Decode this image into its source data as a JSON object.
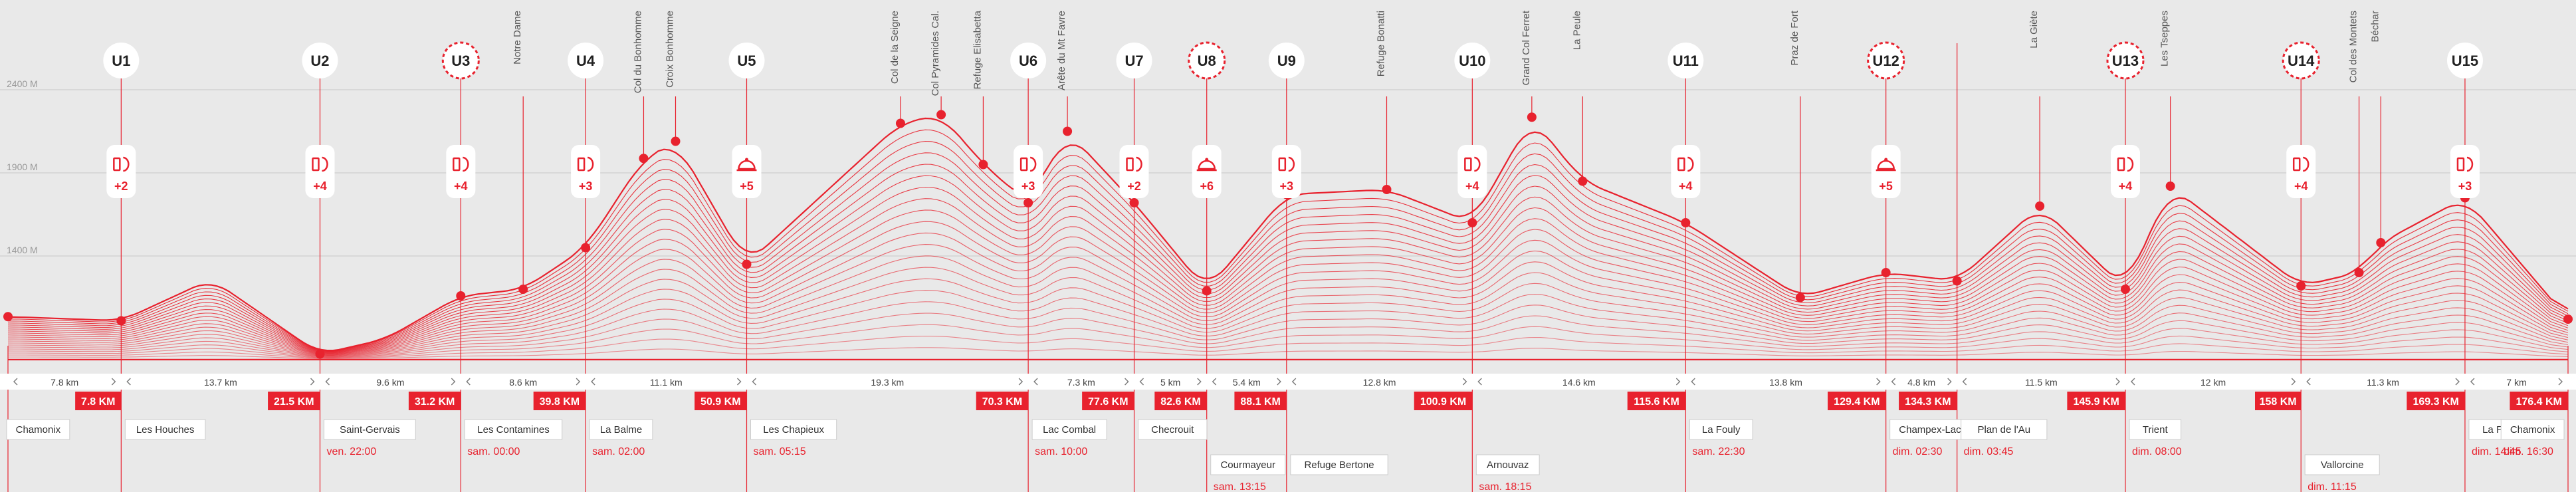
{
  "chart_data": {
    "type": "area",
    "title": "",
    "xlabel": "",
    "ylabel": "",
    "xlim": [
      0,
      176.4
    ],
    "ylim": [
      600,
      2800
    ],
    "y_ticks": [
      {
        "value": 1400,
        "label": "1400 M"
      },
      {
        "value": 1900,
        "label": "1900 M"
      },
      {
        "value": 2400,
        "label": "2400 M"
      }
    ],
    "colors": {
      "accent": "#e8222e",
      "background": "#e9e9e9",
      "grid": "#d2d2d2"
    },
    "profile": [
      {
        "km": 0,
        "alt": 1035
      },
      {
        "km": 7.8,
        "alt": 1010
      },
      {
        "km": 14.0,
        "alt": 1260
      },
      {
        "km": 21.5,
        "alt": 810
      },
      {
        "km": 26.0,
        "alt": 900
      },
      {
        "km": 31.2,
        "alt": 1160
      },
      {
        "km": 35.5,
        "alt": 1200
      },
      {
        "km": 39.8,
        "alt": 1450
      },
      {
        "km": 43.8,
        "alt": 1987
      },
      {
        "km": 46.0,
        "alt": 2090
      },
      {
        "km": 50.9,
        "alt": 1350
      },
      {
        "km": 61.5,
        "alt": 2198
      },
      {
        "km": 64.3,
        "alt": 2250
      },
      {
        "km": 67.2,
        "alt": 1950
      },
      {
        "km": 70.3,
        "alt": 1720
      },
      {
        "km": 73.0,
        "alt": 2150
      },
      {
        "km": 77.6,
        "alt": 1720
      },
      {
        "km": 82.6,
        "alt": 1190
      },
      {
        "km": 88.1,
        "alt": 1770
      },
      {
        "km": 95.0,
        "alt": 1800
      },
      {
        "km": 100.9,
        "alt": 1600
      },
      {
        "km": 105.0,
        "alt": 2235
      },
      {
        "km": 108.5,
        "alt": 1850
      },
      {
        "km": 115.6,
        "alt": 1600
      },
      {
        "km": 123.5,
        "alt": 1150
      },
      {
        "km": 129.4,
        "alt": 1300
      },
      {
        "km": 134.3,
        "alt": 1250
      },
      {
        "km": 140.0,
        "alt": 1700
      },
      {
        "km": 145.9,
        "alt": 1200
      },
      {
        "km": 149.0,
        "alt": 1820
      },
      {
        "km": 158.0,
        "alt": 1220
      },
      {
        "km": 162.0,
        "alt": 1300
      },
      {
        "km": 163.5,
        "alt": 1480
      },
      {
        "km": 169.3,
        "alt": 1750
      },
      {
        "km": 176.4,
        "alt": 1020
      }
    ],
    "stations": [
      {
        "label": "U1",
        "km": 7.8,
        "dashed": false,
        "services": "+2",
        "icon": "drink-food-icon"
      },
      {
        "label": "U2",
        "km": 21.5,
        "dashed": false,
        "services": "+4",
        "icon": "drink-food-icon"
      },
      {
        "label": "U3",
        "km": 31.2,
        "dashed": true,
        "services": "+4",
        "icon": "drink-food-icon"
      },
      {
        "label": "U4",
        "km": 39.8,
        "dashed": false,
        "services": "+3",
        "icon": "drink-food-icon"
      },
      {
        "label": "U5",
        "km": 50.9,
        "dashed": false,
        "services": "+5",
        "icon": "meal-icon"
      },
      {
        "label": "U6",
        "km": 70.3,
        "dashed": false,
        "services": "+3",
        "icon": "drink-food-icon"
      },
      {
        "label": "U7",
        "km": 77.6,
        "dashed": false,
        "services": "+2",
        "icon": "drink-food-icon"
      },
      {
        "label": "U8",
        "km": 82.6,
        "dashed": true,
        "services": "+6",
        "icon": "meal-icon"
      },
      {
        "label": "U9",
        "km": 88.1,
        "dashed": false,
        "services": "+3",
        "icon": "drink-food-icon"
      },
      {
        "label": "U10",
        "km": 100.9,
        "dashed": false,
        "services": "+4",
        "icon": "drink-food-icon"
      },
      {
        "label": "U11",
        "km": 115.6,
        "dashed": false,
        "services": "+4",
        "icon": "drink-food-icon"
      },
      {
        "label": "U12",
        "km": 129.4,
        "dashed": true,
        "services": "+5",
        "icon": "meal-icon"
      },
      {
        "label": "U13",
        "km": 145.9,
        "dashed": true,
        "services": "+4",
        "icon": "drink-food-icon"
      },
      {
        "label": "U14",
        "km": 158,
        "dashed": true,
        "services": "+4",
        "icon": "drink-food-icon"
      },
      {
        "label": "U15",
        "km": 169.3,
        "dashed": false,
        "services": "+3",
        "icon": "drink-food-icon"
      }
    ],
    "summits": [
      {
        "label": "Notre Dame",
        "km": 35.5
      },
      {
        "label": "Col du Bonhomme",
        "km": 43.8
      },
      {
        "label": "Croix Bonhomme",
        "km": 46.0
      },
      {
        "label": "Col de la Seigne",
        "km": 61.5
      },
      {
        "label": "Col Pyramides Cal.",
        "km": 64.3
      },
      {
        "label": "Refuge Elisabetta",
        "km": 67.2
      },
      {
        "label": "Arête du Mt Favre",
        "km": 73.0
      },
      {
        "label": "Refuge Bonatti",
        "km": 95.0
      },
      {
        "label": "Grand Col Ferret",
        "km": 105.0
      },
      {
        "label": "La Peule",
        "km": 108.5
      },
      {
        "label": "Praz de Fort",
        "km": 123.5
      },
      {
        "label": "La Giète",
        "km": 140.0
      },
      {
        "label": "Les Tseppes",
        "km": 149.0
      },
      {
        "label": "Col des Montets",
        "km": 162.0
      },
      {
        "label": "Béchar",
        "km": 163.5
      }
    ],
    "plain_markers_km": [
      134.3
    ],
    "segments": [
      {
        "label": "7.8 km",
        "from": 0,
        "to": 7.8
      },
      {
        "label": "13.7 km",
        "from": 7.8,
        "to": 21.5
      },
      {
        "label": "9.6 km",
        "from": 21.5,
        "to": 31.2
      },
      {
        "label": "8.6 km",
        "from": 31.2,
        "to": 39.8
      },
      {
        "label": "11.1 km",
        "from": 39.8,
        "to": 50.9
      },
      {
        "label": "19.3 km",
        "from": 50.9,
        "to": 70.3
      },
      {
        "label": "7.3 km",
        "from": 70.3,
        "to": 77.6
      },
      {
        "label": "5 km",
        "from": 77.6,
        "to": 82.6
      },
      {
        "label": "5.4 km",
        "from": 82.6,
        "to": 88.1
      },
      {
        "label": "12.8 km",
        "from": 88.1,
        "to": 100.9
      },
      {
        "label": "14.6 km",
        "from": 100.9,
        "to": 115.6
      },
      {
        "label": "13.8 km",
        "from": 115.6,
        "to": 129.4
      },
      {
        "label": "4.8 km",
        "from": 129.4,
        "to": 134.3
      },
      {
        "label": "11.5 km",
        "from": 134.3,
        "to": 145.9
      },
      {
        "label": "12 km",
        "from": 145.9,
        "to": 158
      },
      {
        "label": "11.3 km",
        "from": 158,
        "to": 169.3
      },
      {
        "label": "7 km",
        "from": 169.3,
        "to": 176.4
      }
    ],
    "cumulative": [
      {
        "label": "7.8 KM",
        "km": 7.8
      },
      {
        "label": "21.5 KM",
        "km": 21.5
      },
      {
        "label": "31.2 KM",
        "km": 31.2
      },
      {
        "label": "39.8 KM",
        "km": 39.8
      },
      {
        "label": "50.9 KM",
        "km": 50.9
      },
      {
        "label": "70.3 KM",
        "km": 70.3
      },
      {
        "label": "77.6 KM",
        "km": 77.6
      },
      {
        "label": "82.6 KM",
        "km": 82.6
      },
      {
        "label": "88.1 KM",
        "km": 88.1
      },
      {
        "label": "100.9 KM",
        "km": 100.9
      },
      {
        "label": "115.6 KM",
        "km": 115.6
      },
      {
        "label": "129.4 KM",
        "km": 129.4
      },
      {
        "label": "134.3 KM",
        "km": 134.3
      },
      {
        "label": "145.9 KM",
        "km": 145.9
      },
      {
        "label": "158 KM",
        "km": 158
      },
      {
        "label": "169.3 KM",
        "km": 169.3
      },
      {
        "label": "176.4 KM",
        "km": 176.4
      }
    ],
    "places": [
      {
        "name": "Chamonix",
        "km": 0,
        "time": "",
        "lower": false
      },
      {
        "name": "Les Houches",
        "km": 7.8,
        "time": "",
        "lower": false
      },
      {
        "name": "Saint-Gervais",
        "km": 21.5,
        "time": "ven. 22:00",
        "lower": false
      },
      {
        "name": "Les Contamines",
        "km": 31.2,
        "time": "sam. 00:00",
        "lower": false
      },
      {
        "name": "La Balme",
        "km": 39.8,
        "time": "sam. 02:00",
        "lower": false
      },
      {
        "name": "Les Chapieux",
        "km": 50.9,
        "time": "sam. 05:15",
        "lower": false
      },
      {
        "name": "Lac Combal",
        "km": 70.3,
        "time": "sam. 10:00",
        "lower": false
      },
      {
        "name": "Checrouit",
        "km": 77.6,
        "time": "",
        "lower": false
      },
      {
        "name": "Courmayeur",
        "km": 82.6,
        "time": "sam. 13:15",
        "lower": true
      },
      {
        "name": "Refuge Bertone",
        "km": 88.1,
        "time": "",
        "lower": true
      },
      {
        "name": "Arnouvaz",
        "km": 100.9,
        "time": "sam. 18:15",
        "lower": true
      },
      {
        "name": "La Fouly",
        "km": 115.6,
        "time": "sam. 22:30",
        "lower": false
      },
      {
        "name": "Champex-Lac",
        "km": 129.4,
        "time": "dim. 02:30",
        "lower": false
      },
      {
        "name": "Plan de l'Au",
        "km": 134.3,
        "time": "dim. 03:45",
        "lower": false
      },
      {
        "name": "Trient",
        "km": 145.9,
        "time": "dim. 08:00",
        "lower": false
      },
      {
        "name": "Vallorcine",
        "km": 158,
        "time": "dim. 11:15",
        "lower": true
      },
      {
        "name": "La Flégère",
        "km": 169.3,
        "time": "dim. 14:45",
        "lower": false
      },
      {
        "name": "Chamonix",
        "km": 176.4,
        "time": "dim. 16:30",
        "lower": false
      }
    ]
  }
}
